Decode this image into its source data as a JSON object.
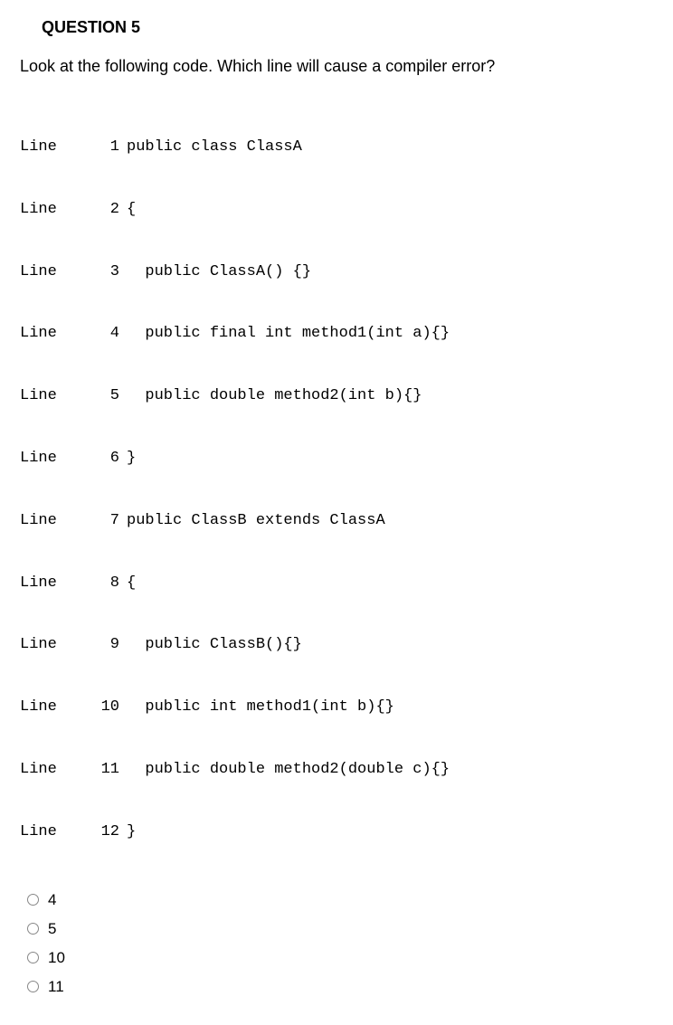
{
  "title": "QUESTION 5",
  "prompt": "Look at the following code. Which line will cause a compiler error?",
  "code": [
    {
      "label": "Line",
      "num": "1",
      "text": "public class ClassA"
    },
    {
      "label": "Line",
      "num": "2",
      "text": "{"
    },
    {
      "label": "Line",
      "num": "3",
      "text": "  public ClassA() {}"
    },
    {
      "label": "Line",
      "num": "4",
      "text": "  public final int method1(int a){}"
    },
    {
      "label": "Line",
      "num": "5",
      "text": "  public double method2(int b){}"
    },
    {
      "label": "Line",
      "num": "6",
      "text": "}"
    },
    {
      "label": "Line",
      "num": "7",
      "text": "public ClassB extends ClassA"
    },
    {
      "label": "Line",
      "num": "8",
      "text": "{"
    },
    {
      "label": "Line",
      "num": "9",
      "text": "  public ClassB(){}"
    },
    {
      "label": "Line",
      "num": "10",
      "text": "  public int method1(int b){}"
    },
    {
      "label": "Line",
      "num": "11",
      "text": "  public double method2(double c){}"
    },
    {
      "label": "Line",
      "num": "12",
      "text": "}"
    }
  ],
  "answers": [
    "4",
    "5",
    "10",
    "11"
  ]
}
